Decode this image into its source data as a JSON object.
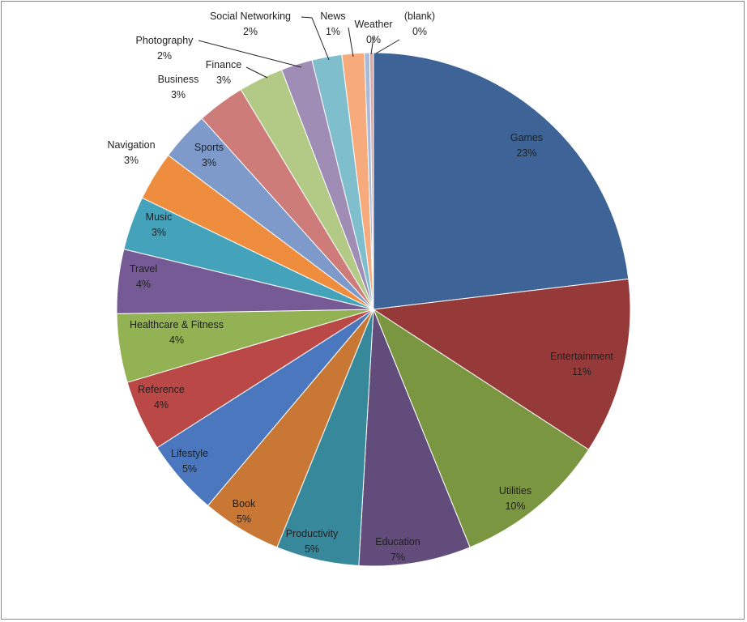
{
  "chart_data": {
    "type": "pie",
    "title": "",
    "start": "12 o'clock, clockwise",
    "slices": [
      {
        "label": "Games",
        "value": 23,
        "display": "23%",
        "color": "#3E6497"
      },
      {
        "label": "Entertainment",
        "value": 11,
        "display": "11%",
        "color": "#953A39"
      },
      {
        "label": "Utilities",
        "value": 10,
        "display": "10%",
        "color": "#7A9641"
      },
      {
        "label": "Education",
        "value": 7,
        "display": "7%",
        "color": "#624C7C"
      },
      {
        "label": "Productivity",
        "value": 5,
        "display": "5%",
        "color": "#37889B"
      },
      {
        "label": "Book",
        "value": 5,
        "display": "5%",
        "color": "#C97734"
      },
      {
        "label": "Lifestyle",
        "value": 5,
        "display": "5%",
        "color": "#4A77BD"
      },
      {
        "label": "Reference",
        "value": 4,
        "display": "4%",
        "color": "#B94846"
      },
      {
        "label": "Healthcare & Fitness",
        "value": 4,
        "display": "4%",
        "color": "#93B254"
      },
      {
        "label": "Travel",
        "value": 4,
        "display": "4%",
        "color": "#765A95"
      },
      {
        "label": "Music",
        "value": 3,
        "display": "3%",
        "color": "#44A2BB"
      },
      {
        "label": "Navigation",
        "value": 3,
        "display": "3%",
        "color": "#EE8D3D"
      },
      {
        "label": "Sports",
        "value": 3,
        "display": "3%",
        "color": "#7E9ACB"
      },
      {
        "label": "Business",
        "value": 3,
        "display": "3%",
        "color": "#CD7C7A"
      },
      {
        "label": "Finance",
        "value": 3,
        "display": "3%",
        "color": "#B3CA87"
      },
      {
        "label": "Photography",
        "value": 2,
        "display": "2%",
        "color": "#9F8DB5"
      },
      {
        "label": "Social Networking",
        "value": 2,
        "display": "2%",
        "color": "#7FBECD"
      },
      {
        "label": "News",
        "value": 1,
        "display": "1%",
        "color": "#F7AB7C"
      },
      {
        "label": "Weather",
        "value": 0,
        "display": "0%",
        "color": "#A9B9D9"
      },
      {
        "label": "(blank)",
        "value": 0,
        "display": "0%",
        "color": "#D9A9A8"
      }
    ]
  }
}
